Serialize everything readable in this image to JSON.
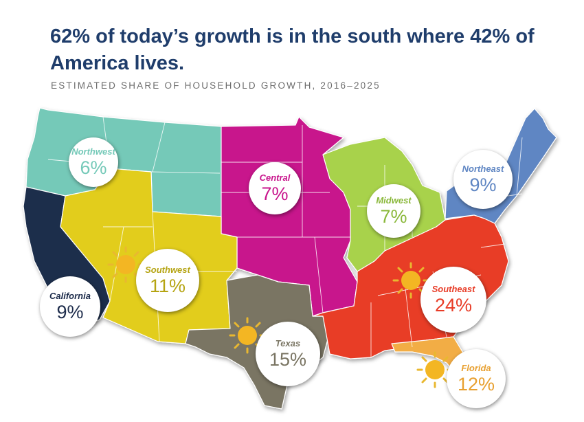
{
  "title": "62% of today’s growth is in the south where 42% of America lives.",
  "subtitle": "ESTIMATED SHARE OF HOUSEHOLD GROWTH, 2016–2025",
  "regions": [
    {
      "name": "Northwest",
      "share": "6%",
      "color": "#74c9b8"
    },
    {
      "name": "Central",
      "share": "7%",
      "color": "#c8148c"
    },
    {
      "name": "Midwest",
      "share": "7%",
      "color": "#a8d24c"
    },
    {
      "name": "Northeast",
      "share": "9%",
      "color": "#5f86c3"
    },
    {
      "name": "California",
      "share": "9%",
      "color": "#1e2d4c"
    },
    {
      "name": "Southwest",
      "share": "11%",
      "color": "#e2cd1a"
    },
    {
      "name": "Texas",
      "share": "15%",
      "color": "#7a7563"
    },
    {
      "name": "Southeast",
      "share": "24%",
      "color": "#e83c27"
    },
    {
      "name": "Florida",
      "share": "12%",
      "color": "#f2ad45"
    }
  ],
  "label_colors": {
    "Northwest": "#74c9b8",
    "Central": "#c8148c",
    "Midwest": "#8ab83a",
    "Northeast": "#5f86c3",
    "California": "#1e2d4c",
    "Southwest": "#b5a412",
    "Texas": "#7a7563",
    "Southeast": "#e83c27",
    "Florida": "#e8a030"
  },
  "sun_icons_on": [
    "Southwest",
    "Texas",
    "Southeast",
    "Florida"
  ]
}
